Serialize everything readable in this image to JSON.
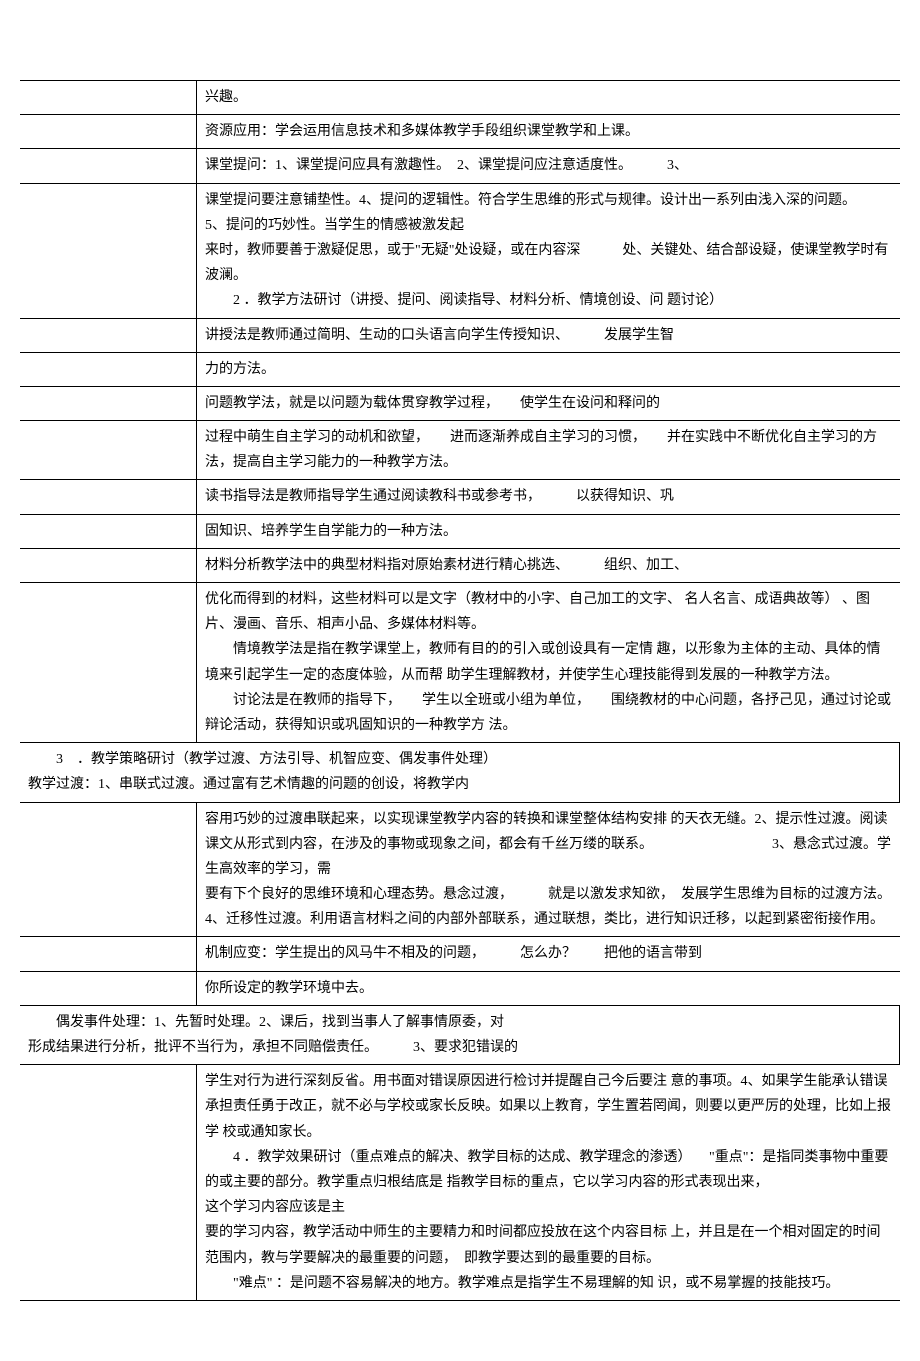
{
  "rows": [
    {
      "cells": [
        {
          "cls": "col1 noborder-l",
          "text": ""
        },
        {
          "cls": "col2 noborder-r",
          "text": "兴趣。"
        }
      ]
    },
    {
      "cells": [
        {
          "cls": "col1 noborder-lr",
          "text": "",
          "colspan": 1
        },
        {
          "cls": "col2 noborder-r",
          "text": "资源应用：学会运用信息技术和多媒体教学手段组织课堂教学和上课。"
        }
      ]
    },
    {
      "cells": [
        {
          "cls": "col1 noborder-lr",
          "text": ""
        },
        {
          "cls": "col2 noborder-r",
          "text": "课堂提问：1、课堂提问应具有激趣性。　2、课堂提问应注意适度性。　　　3、"
        }
      ]
    },
    {
      "cells": [
        {
          "cls": "col1 noborder-l",
          "text": ""
        },
        {
          "cls": "col2 noborder-r",
          "text": "课堂提问要注意铺垫性。4、提问的逻辑性。符合学生思维的形式与规律。设计出一系列由浅入深的问题。　　　　　　5、提问的巧妙性。当学生的情感被激发起\n来时，教师要善于激疑促思，或于\"无疑\"处设疑，或在内容深　　　处、关键处、结合部设疑，使课堂教学时有波澜。\n　　2 ．教学方法研讨（讲授、提问、阅读指导、材料分析、情境创设、问 题讨论）"
        }
      ]
    },
    {
      "cells": [
        {
          "cls": "col1 noborder-lr",
          "text": ""
        },
        {
          "cls": "col2 noborder-r",
          "text": "讲授法是教师通过简明、生动的口头语言向学生传授知识、　　　发展学生智"
        }
      ]
    },
    {
      "cells": [
        {
          "cls": "col1 noborder-l",
          "text": ""
        },
        {
          "cls": "col2 noborder-r",
          "text": "力的方法。"
        }
      ]
    },
    {
      "cells": [
        {
          "cls": "col1 noborder-lr",
          "text": ""
        },
        {
          "cls": "col2 noborder-r",
          "text": "问题教学法，就是以问题为载体贯穿教学过程，　　使学生在设问和释问的"
        }
      ]
    },
    {
      "cells": [
        {
          "cls": "col1 noborder-l",
          "text": ""
        },
        {
          "cls": "col2 noborder-r",
          "text": "过程中萌生自主学习的动机和欲望，　　进而逐渐养成自主学习的习惯，　　并在实践中不断优化自主学习的方法，提高自主学习能力的一种教学方法。"
        }
      ]
    },
    {
      "cells": [
        {
          "cls": "col1 noborder-lr",
          "text": ""
        },
        {
          "cls": "col2 noborder-r",
          "text": "读书指导法是教师指导学生通过阅读教科书或参考书，　　　以获得知识、巩"
        }
      ]
    },
    {
      "cells": [
        {
          "cls": "col1 noborder-l",
          "text": ""
        },
        {
          "cls": "col2 noborder-r",
          "text": "固知识、培养学生自学能力的一种方法。"
        }
      ]
    },
    {
      "cells": [
        {
          "cls": "col1 noborder-lr",
          "text": ""
        },
        {
          "cls": "col2 noborder-r",
          "text": "材料分析教学法中的典型材料指对原始素材进行精心挑选、　　　组织、加工、"
        }
      ]
    },
    {
      "cells": [
        {
          "cls": "col1 noborder-l",
          "text": ""
        },
        {
          "cls": "col2 noborder-r",
          "text": "优化而得到的材料，这些材料可以是文字（教材中的小字、自己加工的文字、 名人名言、成语典故等） 、图片、漫画、音乐、相声小品、多媒体材料等。\n　　情境教学法是指在教学课堂上，教师有目的的引入或创设具有一定情 趣，以形象为主体的主动、具体的情境来引起学生一定的态度体验，从而帮 助学生理解教材，并使学生心理技能得到发展的一种教学方法。\n　　讨论法是在教师的指导下，　　学生以全班或小组为单位，　　围绕教材的中心问题，各抒己见，通过讨论或辩论活动，获得知识或巩固知识的一种教学方 法。"
        }
      ]
    },
    {
      "cells": [
        {
          "cls": "noborder-l",
          "text": "　　3　．教学策略研讨（教学过渡、方法引导、机智应变、偶发事件处理）\n教学过渡：1、串联式过渡。通过富有艺术情趣的问题的创设，将教学内",
          "colspan": 2
        }
      ]
    },
    {
      "cells": [
        {
          "cls": "col1 noborder-l",
          "text": ""
        },
        {
          "cls": "col2 noborder-r",
          "text": "容用巧妙的过渡串联起来，以实现课堂教学内容的转换和课堂整体结构安排 的天衣无缝。2、提示性过渡。阅读课文从形式到内容，在涉及的事物或现象之间，都会有千丝万缕的联系。　　　　　　　　　3、悬念式过渡。学生高效率的学习，需\n要有下个良好的思维环境和心理态势。悬念过渡，　　　就是以激发求知欲，　发展学生思维为目标的过渡方法。　　4、迁移性过渡。利用语言材料之间的内部外部联系，通过联想，类比，进行知识迁移，以起到紧密衔接作用。"
        }
      ]
    },
    {
      "cells": [
        {
          "cls": "col1 noborder-lr",
          "text": ""
        },
        {
          "cls": "col2 noborder-r",
          "text": "机制应变：学生提出的风马牛不相及的问题，　　　怎么办？　　把他的语言带到"
        }
      ]
    },
    {
      "cells": [
        {
          "cls": "col1 noborder-l",
          "text": ""
        },
        {
          "cls": "col2 noborder-r",
          "text": "你所设定的教学环境中去。"
        }
      ]
    },
    {
      "cells": [
        {
          "cls": "noborder-l",
          "text": "　　偶发事件处理：1、先暂时处理。2、课后，找到当事人了解事情原委，对\n形成结果进行分析，批评不当行为，承担不同赔偿责任。　　　3、要求犯错误的",
          "colspan": 2
        }
      ]
    },
    {
      "cells": [
        {
          "cls": "col1 noborder-l",
          "text": ""
        },
        {
          "cls": "col2 noborder-r",
          "text": "学生对行为进行深刻反省。用书面对错误原因进行检讨并提醒自己今后要注 意的事项。4、如果学生能承认错误承担责任勇于改正，就不必与学校或家长反映。如果以上教育，学生置若罔闻，则要以更严厉的处理，比如上报学 校或通知家长。\n　　4 ．教学效果研讨（重点难点的解决、教学目标的达成、教学理念的渗透） 　\"重点\"：是指同类事物中重要的或主要的部分。教学重点归根结底是 指教学目标的重点，它以学习内容的形式表现出来，　　　　　　　　　这个学习内容应该是主\n要的学习内容，教学活动中师生的主要精力和时间都应投放在这个内容目标 上，并且是在一个相对固定的时间范围内，教与学要解决的最重要的问题，　即教学要达到的最重要的目标。\n　　\"难点\" ：是问题不容易解决的地方。教学难点是指学生不易理解的知 识，或不易掌握的技能技巧。"
        }
      ]
    }
  ]
}
